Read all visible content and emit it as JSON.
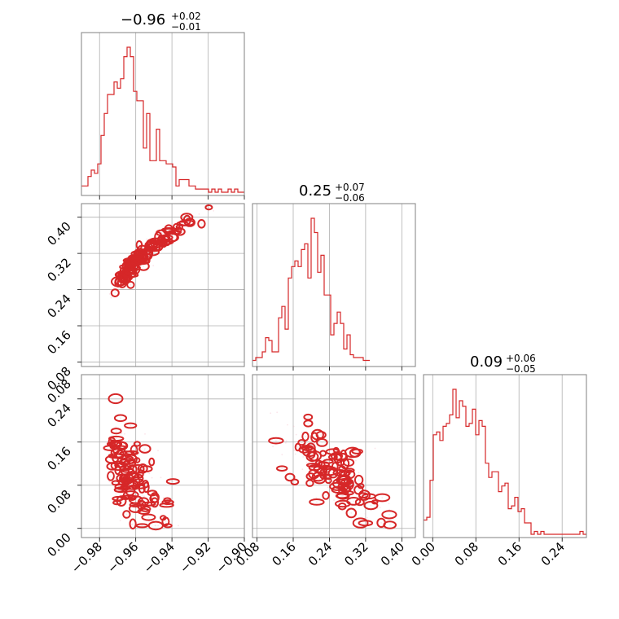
{
  "chart_data": {
    "type": "corner",
    "color": "#d62728",
    "fill_color": "#f4a3a6",
    "point_color": "#f3b5c4",
    "grid": true,
    "parameters": [
      {
        "median": "0.96",
        "median_sign": "−",
        "plus": "+0.02",
        "minus": "−0.01",
        "range": [
          -0.99,
          -0.9
        ]
      },
      {
        "median": "0.25",
        "median_sign": "",
        "plus": "+0.07",
        "minus": "−0.06",
        "range": [
          0.07,
          0.43
        ]
      },
      {
        "median": "0.09",
        "median_sign": "",
        "plus": "+0.06",
        "minus": "−0.05",
        "range": [
          -0.017,
          0.285
        ]
      }
    ],
    "ticks": {
      "p0": {
        "values": [
          -0.98,
          -0.96,
          -0.94,
          -0.92,
          -0.9
        ],
        "labels": [
          "−0.98",
          "−0.96",
          "−0.94",
          "−0.92",
          "−0.90"
        ]
      },
      "p1": {
        "values": [
          0.08,
          0.16,
          0.24,
          0.32,
          0.4
        ],
        "labels": [
          "0.08",
          "0.16",
          "0.24",
          "0.32",
          "0.40"
        ]
      },
      "p2": {
        "values": [
          0.0,
          0.08,
          0.16,
          0.24
        ],
        "labels": [
          "0.00",
          "0.08",
          "0.16",
          "0.24"
        ]
      }
    },
    "histograms": [
      {
        "param": 0,
        "bin_start": -0.99,
        "bin_width": 0.0018,
        "counts": [
          2,
          2,
          5,
          7,
          6,
          9,
          18,
          25,
          31,
          31,
          35,
          33,
          36,
          43,
          46,
          43,
          32,
          29,
          29,
          14,
          25,
          10,
          10,
          20,
          10,
          10,
          9,
          9,
          8,
          2,
          4,
          4,
          4,
          2,
          2,
          1,
          1,
          1,
          1,
          0,
          1,
          0,
          1,
          0,
          0,
          1,
          0,
          1,
          0,
          0
        ]
      },
      {
        "param": 1,
        "bin_start": 0.07,
        "bin_width": 0.0072,
        "counts": [
          1,
          2,
          2,
          4,
          9,
          8,
          4,
          4,
          16,
          20,
          12,
          30,
          34,
          36,
          34,
          40,
          42,
          30,
          51,
          46,
          32,
          38,
          24,
          24,
          10,
          14,
          18,
          14,
          5,
          10,
          3,
          2,
          2,
          2,
          1,
          1
        ]
      },
      {
        "param": 2,
        "bin_start": -0.017,
        "bin_width": 0.00604,
        "counts": [
          5,
          6,
          19,
          35,
          36,
          33,
          38,
          39,
          42,
          51,
          41,
          47,
          45,
          38,
          39,
          44,
          35,
          40,
          38,
          25,
          20,
          22,
          22,
          15,
          17,
          18,
          9,
          10,
          13,
          8,
          9,
          4,
          4,
          0,
          1,
          0,
          1,
          0,
          0,
          0,
          0,
          0,
          0,
          0,
          0,
          0,
          0,
          0,
          1,
          0
        ]
      }
    ]
  }
}
